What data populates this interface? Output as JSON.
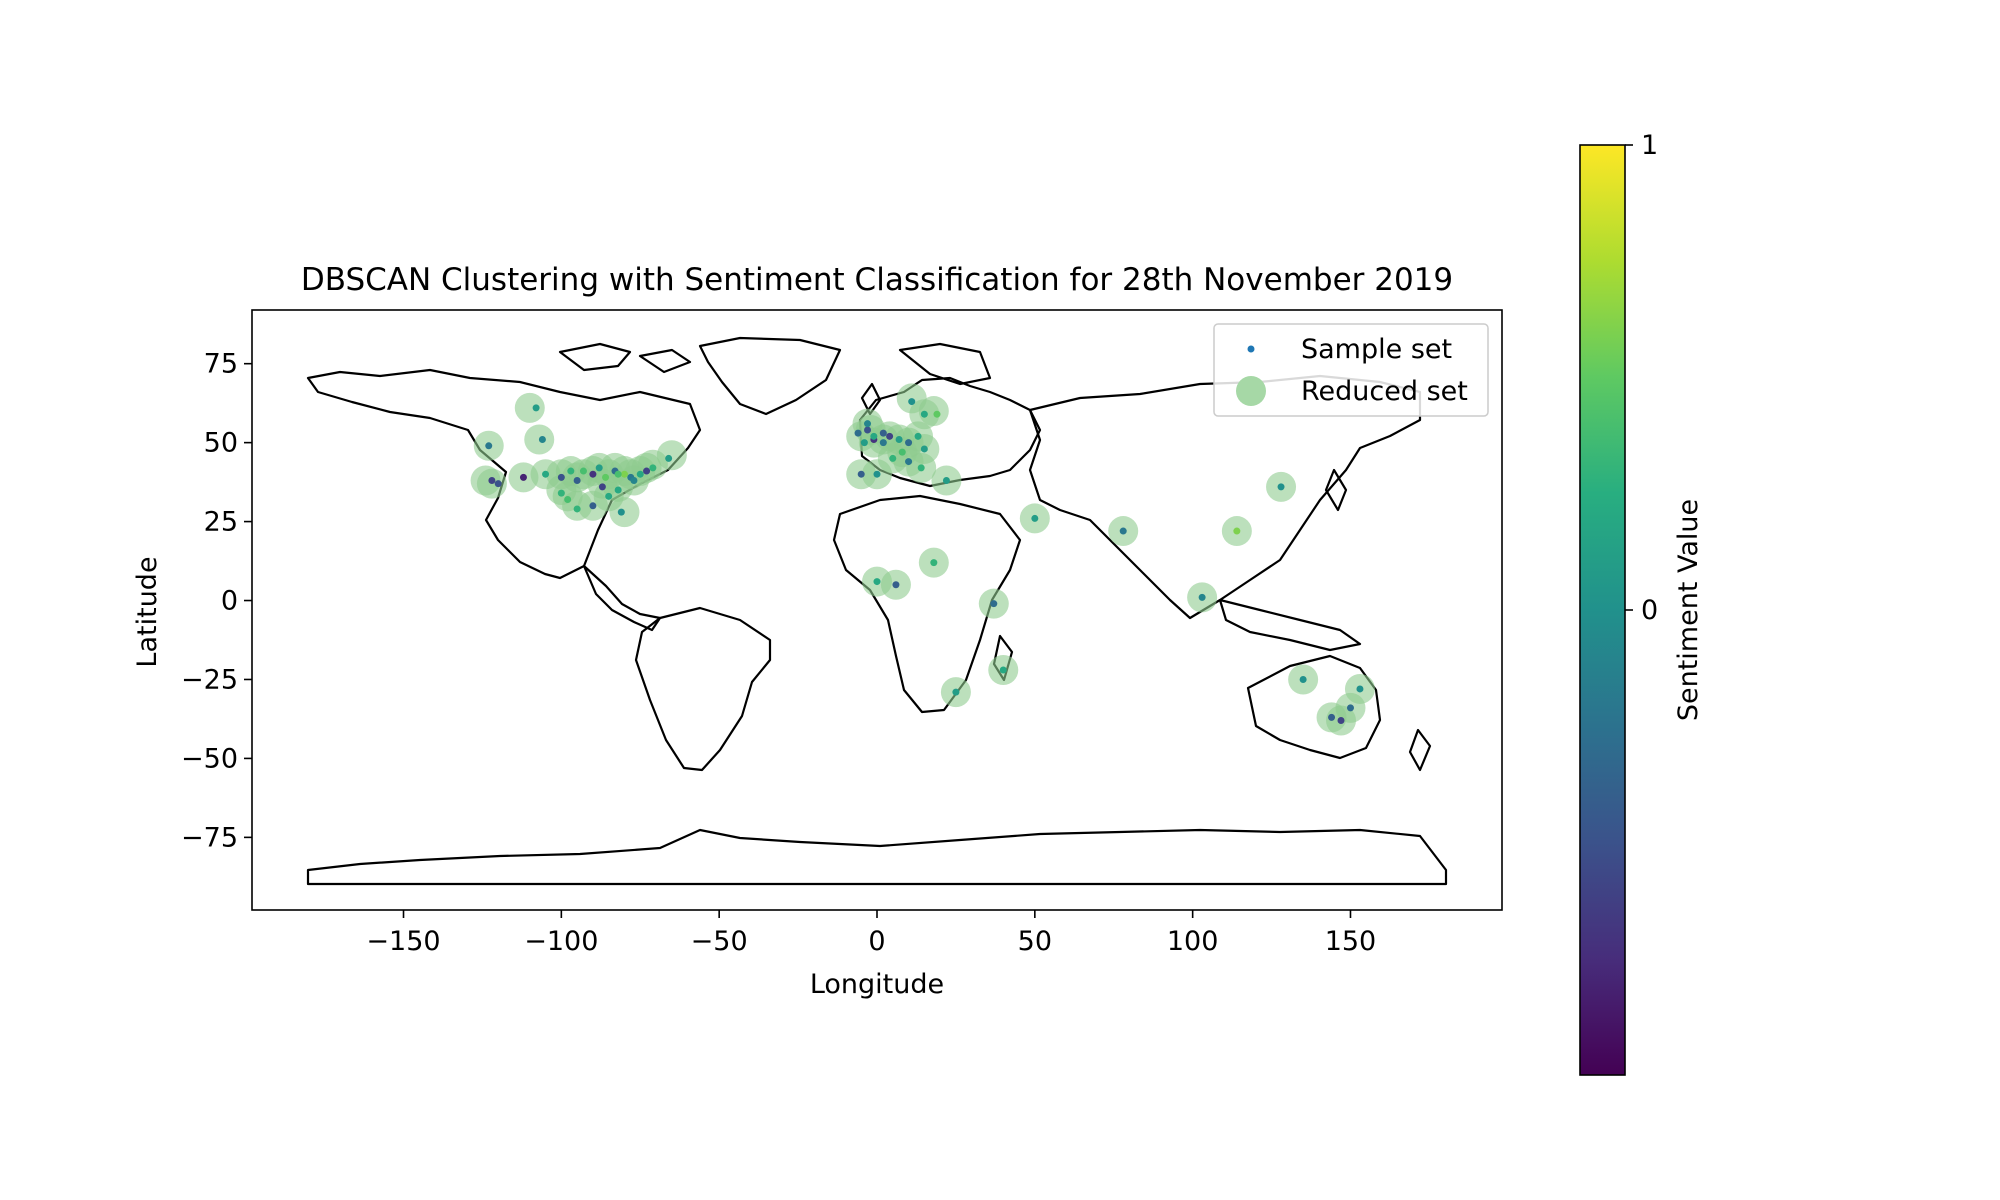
{
  "chart_data": {
    "type": "scatter",
    "title": "DBSCAN Clustering with Sentiment Classification for 28th November 2019",
    "xlabel": "Longitude",
    "ylabel": "Latitude",
    "xlim": [
      -198,
      198
    ],
    "ylim": [
      -98,
      92
    ],
    "xticks": [
      -150,
      -100,
      -50,
      0,
      50,
      100,
      150
    ],
    "xtick_labels": [
      "−150",
      "−100",
      "−50",
      "0",
      "50",
      "100",
      "150"
    ],
    "yticks": [
      75,
      50,
      25,
      0,
      -25,
      -50,
      -75
    ],
    "ytick_labels": [
      "75",
      "50",
      "25",
      "0",
      "−25",
      "−50",
      "−75"
    ],
    "grid": false,
    "legend_position": "top-right",
    "legend": [
      {
        "label": "Sample set",
        "color": "#1f77b4"
      },
      {
        "label": "Reduced set",
        "color": "#a6d8a6"
      }
    ],
    "colorbar": {
      "label": "Sentiment Value",
      "range": [
        -1,
        1
      ],
      "ticks": [
        1,
        0
      ],
      "tick_labels": [
        "1",
        "0"
      ],
      "colormap": "viridis"
    },
    "series": [
      {
        "name": "Reduced set",
        "color": "#90cc90",
        "points": [
          [
            -123,
            49
          ],
          [
            -124,
            38
          ],
          [
            -122,
            37
          ],
          [
            -110,
            61
          ],
          [
            -107,
            51
          ],
          [
            -112,
            39
          ],
          [
            -105,
            40
          ],
          [
            -100,
            40
          ],
          [
            -97,
            41
          ],
          [
            -95,
            39
          ],
          [
            -93,
            40
          ],
          [
            -90,
            41
          ],
          [
            -88,
            42
          ],
          [
            -85,
            40
          ],
          [
            -83,
            42
          ],
          [
            -80,
            41
          ],
          [
            -78,
            40
          ],
          [
            -75,
            41
          ],
          [
            -73,
            42
          ],
          [
            -71,
            43
          ],
          [
            -65,
            46
          ],
          [
            -95,
            30
          ],
          [
            -90,
            30
          ],
          [
            -85,
            33
          ],
          [
            -80,
            28
          ],
          [
            -98,
            33
          ],
          [
            -87,
            37
          ],
          [
            -82,
            36
          ],
          [
            -77,
            38
          ],
          [
            -100,
            35
          ],
          [
            -5,
            52
          ],
          [
            -2,
            54
          ],
          [
            -1,
            50
          ],
          [
            2,
            51
          ],
          [
            4,
            52
          ],
          [
            7,
            51
          ],
          [
            10,
            50
          ],
          [
            13,
            52
          ],
          [
            15,
            48
          ],
          [
            11,
            64
          ],
          [
            15,
            59
          ],
          [
            18,
            60
          ],
          [
            5,
            45
          ],
          [
            10,
            44
          ],
          [
            -5,
            40
          ],
          [
            0,
            40
          ],
          [
            14,
            42
          ],
          [
            22,
            38
          ],
          [
            -3,
            56
          ],
          [
            8,
            47
          ],
          [
            50,
            26
          ],
          [
            78,
            22
          ],
          [
            114,
            22
          ],
          [
            103,
            1
          ],
          [
            128,
            36
          ],
          [
            0,
            6
          ],
          [
            6,
            5
          ],
          [
            18,
            12
          ],
          [
            37,
            -1
          ],
          [
            40,
            -22
          ],
          [
            25,
            -29
          ],
          [
            135,
            -25
          ],
          [
            144,
            -37
          ],
          [
            150,
            -34
          ],
          [
            153,
            -28
          ],
          [
            147,
            -38
          ]
        ]
      },
      {
        "name": "Sample set",
        "color": "#1f77b4",
        "points": [
          [
            -123,
            49,
            -0.2
          ],
          [
            -122,
            38,
            -0.6
          ],
          [
            -120,
            37,
            -0.5
          ],
          [
            -108,
            61,
            0.1
          ],
          [
            -106,
            51,
            -0.1
          ],
          [
            -112,
            39,
            -0.8
          ],
          [
            -105,
            40,
            0.2
          ],
          [
            -100,
            39,
            -0.5
          ],
          [
            -97,
            41,
            0.3
          ],
          [
            -95,
            38,
            -0.4
          ],
          [
            -93,
            41,
            0.4
          ],
          [
            -90,
            40,
            -0.7
          ],
          [
            -88,
            42,
            0.1
          ],
          [
            -86,
            39,
            0.5
          ],
          [
            -83,
            41,
            -0.3
          ],
          [
            -80,
            40,
            0.6
          ],
          [
            -78,
            39,
            -0.2
          ],
          [
            -75,
            40,
            0.2
          ],
          [
            -73,
            41,
            -0.6
          ],
          [
            -71,
            42,
            0.3
          ],
          [
            -66,
            45,
            0.1
          ],
          [
            -95,
            29,
            0.3
          ],
          [
            -90,
            30,
            -0.4
          ],
          [
            -85,
            33,
            0.2
          ],
          [
            -81,
            28,
            0.0
          ],
          [
            -98,
            32,
            0.4
          ],
          [
            -87,
            36,
            -0.6
          ],
          [
            -82,
            35,
            0.2
          ],
          [
            -77,
            38,
            -0.1
          ],
          [
            -100,
            34,
            0.3
          ],
          [
            -6,
            53,
            -0.3
          ],
          [
            -3,
            54,
            -0.5
          ],
          [
            -1,
            51,
            -0.7
          ],
          [
            2,
            50,
            -0.2
          ],
          [
            4,
            52,
            -0.6
          ],
          [
            7,
            51,
            0.1
          ],
          [
            10,
            50,
            -0.3
          ],
          [
            13,
            52,
            0.2
          ],
          [
            15,
            48,
            0.1
          ],
          [
            11,
            63,
            0.0
          ],
          [
            15,
            59,
            0.2
          ],
          [
            19,
            59,
            0.5
          ],
          [
            5,
            45,
            0.3
          ],
          [
            10,
            44,
            -0.2
          ],
          [
            -5,
            40,
            -0.4
          ],
          [
            0,
            40,
            0.0
          ],
          [
            14,
            42,
            0.3
          ],
          [
            22,
            38,
            0.1
          ],
          [
            -3,
            56,
            -0.1
          ],
          [
            8,
            47,
            0.4
          ],
          [
            50,
            26,
            0.1
          ],
          [
            78,
            22,
            -0.2
          ],
          [
            114,
            22,
            0.6
          ],
          [
            103,
            1,
            -0.1
          ],
          [
            128,
            36,
            0.0
          ],
          [
            0,
            6,
            0.2
          ],
          [
            6,
            5,
            -0.4
          ],
          [
            18,
            12,
            0.3
          ],
          [
            37,
            -1,
            -0.3
          ],
          [
            40,
            -22,
            0.2
          ],
          [
            25,
            -29,
            0.1
          ],
          [
            135,
            -25,
            0.0
          ],
          [
            144,
            -37,
            -0.4
          ],
          [
            150,
            -34,
            -0.3
          ],
          [
            153,
            -28,
            0.0
          ],
          [
            147,
            -38,
            -0.6
          ],
          [
            -1,
            52,
            0.2
          ],
          [
            2,
            53,
            -0.4
          ],
          [
            -4,
            50,
            0.1
          ],
          [
            -82,
            40,
            0.4
          ]
        ]
      }
    ]
  }
}
